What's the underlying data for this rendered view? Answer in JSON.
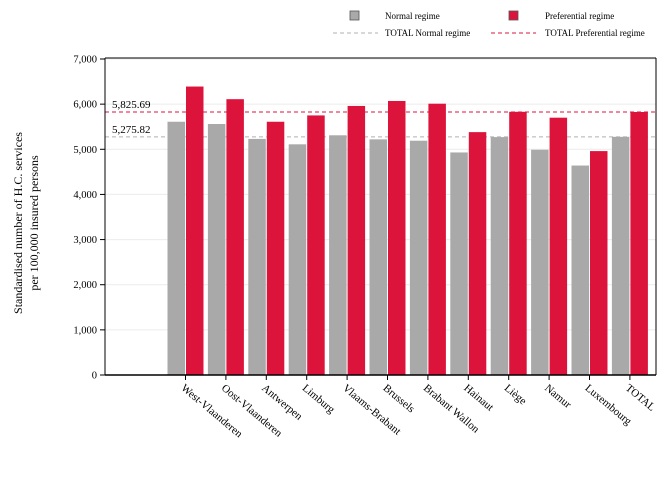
{
  "chart_data": {
    "type": "bar",
    "ylabel_line1": "Standardised number of H.C. services",
    "ylabel_line2": "per 100,000 insured persons",
    "categories": [
      "West-Vlaanderen",
      "Oost-Vlaanderen",
      "Antwerpen",
      "Limburg",
      "Vlaams-Brabant",
      "Brussels",
      "Brabant Wallon",
      "Hainaut",
      "Liège",
      "Namur",
      "Luxembourg",
      "TOTAL"
    ],
    "series": [
      {
        "name": "Normal regime",
        "color": "#a9a9a9",
        "values": [
          5610,
          5560,
          5230,
          5110,
          5310,
          5220,
          5190,
          4930,
          5270,
          4990,
          4640,
          5276
        ]
      },
      {
        "name": "Preferential regime",
        "color": "#dc143c",
        "values": [
          6390,
          6110,
          5610,
          5750,
          5960,
          6070,
          6010,
          5380,
          5830,
          5700,
          4960,
          5826
        ]
      }
    ],
    "reference_lines": [
      {
        "name": "TOTAL Normal regime",
        "value": 5275.82,
        "label": "5,275.82",
        "color": "#b0b0b0",
        "style": "dashed"
      },
      {
        "name": "TOTAL Preferential regime",
        "value": 5825.69,
        "label": "5,825.69",
        "color": "#dc143c",
        "style": "dashed"
      }
    ],
    "ylim": [
      0,
      7000
    ],
    "yticks": [
      "0",
      "1,000",
      "2,000",
      "3,000",
      "4,000",
      "5,000",
      "6,000",
      "7,000"
    ],
    "legend_position": "top",
    "grid": "horizontal"
  }
}
